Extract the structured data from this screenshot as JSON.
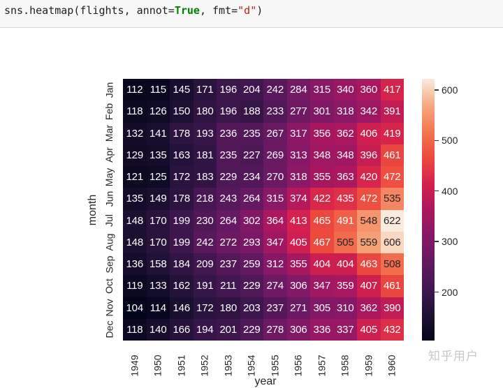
{
  "code_cell": {
    "prefix": "sns.heatmap(flights, annot=",
    "keyword": "True",
    "middle": ", fmt=",
    "string": "\"d\"",
    "suffix": ")"
  },
  "watermark": "知乎用户",
  "chart_data": {
    "type": "heatmap",
    "title": "",
    "xlabel": "year",
    "ylabel": "month",
    "x": [
      "1949",
      "1950",
      "1951",
      "1952",
      "1953",
      "1954",
      "1955",
      "1956",
      "1957",
      "1958",
      "1959",
      "1960"
    ],
    "y": [
      "Jan",
      "Feb",
      "Mar",
      "Apr",
      "May",
      "Jun",
      "Jul",
      "Aug",
      "Sep",
      "Oct",
      "Nov",
      "Dec"
    ],
    "values": [
      [
        112,
        115,
        145,
        171,
        196,
        204,
        242,
        284,
        315,
        340,
        360,
        417
      ],
      [
        118,
        126,
        150,
        180,
        196,
        188,
        233,
        277,
        301,
        318,
        342,
        391
      ],
      [
        132,
        141,
        178,
        193,
        236,
        235,
        267,
        317,
        356,
        362,
        406,
        419
      ],
      [
        129,
        135,
        163,
        181,
        235,
        227,
        269,
        313,
        348,
        348,
        396,
        461
      ],
      [
        121,
        125,
        172,
        183,
        229,
        234,
        270,
        318,
        355,
        363,
        420,
        472
      ],
      [
        135,
        149,
        178,
        218,
        243,
        264,
        315,
        374,
        422,
        435,
        472,
        535
      ],
      [
        148,
        170,
        199,
        230,
        264,
        302,
        364,
        413,
        465,
        491,
        548,
        622
      ],
      [
        148,
        170,
        199,
        242,
        272,
        293,
        347,
        405,
        467,
        505,
        559,
        606
      ],
      [
        136,
        158,
        184,
        209,
        237,
        259,
        312,
        355,
        404,
        404,
        463,
        508
      ],
      [
        119,
        133,
        162,
        191,
        211,
        229,
        274,
        306,
        347,
        359,
        407,
        461
      ],
      [
        104,
        114,
        146,
        172,
        180,
        203,
        237,
        271,
        305,
        310,
        362,
        390
      ],
      [
        118,
        140,
        166,
        194,
        201,
        229,
        278,
        306,
        336,
        337,
        405,
        432
      ]
    ],
    "colormap": "rocket",
    "colorbar": {
      "ticks": [
        200,
        300,
        400,
        500,
        600
      ],
      "range": [
        104,
        622
      ]
    },
    "annot": true,
    "fmt": "d"
  }
}
